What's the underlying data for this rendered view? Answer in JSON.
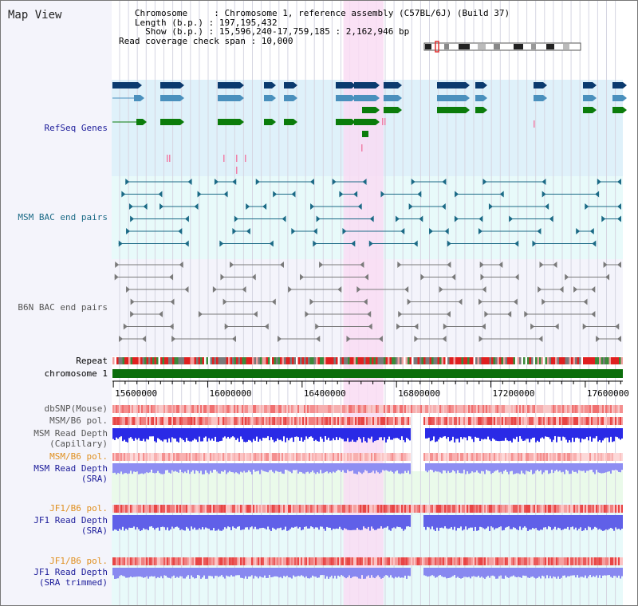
{
  "app": {
    "title": "Map View"
  },
  "header": {
    "lines": [
      "   Chromosome     : Chromosome 1, reference assembly (C57BL/6J) (Build 37)",
      "   Length (b.p.) : 197,195,432",
      "     Show (b.p.) : 15,596,240-17,759,185 : 2,162,946 bp",
      "Read coverage check span : 10,000"
    ]
  },
  "tracks": {
    "refseq_label": "RefSeq Genes",
    "msm_bac_label": "MSM BAC end pairs",
    "b6n_bac_label": "B6N BAC end pairs",
    "repeat_label": "Repeat",
    "chromosome_label": "chromosome 1",
    "dbsnp_label": "dbSNP(Mouse)",
    "msm_pol_label": "MSM/B6 pol.",
    "msm_depth_cap_label": "MSM Read Depth",
    "msm_depth_cap_sub": "(Capillary)",
    "msm_pol_sra_label": "MSM/B6 pol.",
    "msm_depth_sra_label": "MSM Read Depth",
    "msm_depth_sra_sub": "(SRA)",
    "jf1_pol_label": "JF1/B6 pol.",
    "jf1_depth_sra_label": "JF1 Read Depth",
    "jf1_depth_sra_sub": "(SRA)",
    "jf1_pol2_label": "JF1/B6 pol.",
    "jf1_depth_trim_label": "JF1 Read Depth",
    "jf1_depth_trim_sub": "(SRA trimmed)"
  },
  "axis": {
    "ticks": [
      "15600000",
      "16000000",
      "16400000",
      "16800000",
      "17200000",
      "17600000"
    ],
    "tick_values": [
      15600000,
      16000000,
      16400000,
      16800000,
      17200000,
      17600000
    ],
    "start": 15596240,
    "end": 17759185
  },
  "highlight": {
    "start": 16575000,
    "end": 16745000
  },
  "colors": {
    "refseq_bg": "#dff1fa",
    "msm_bac_bg": "#e8fafa",
    "b6n_bac_bg": "#f4f4fb",
    "highlight": "#f9dcf3",
    "refseq_navy": "#0b3a6e",
    "refseq_steel": "#4a90bd",
    "refseq_green": "#0b7c0b",
    "bac_teal": "#1b6a86",
    "b6n_gray": "#7a7a7a",
    "label_blue": "#1c1c9a",
    "label_teal": "#1b6a86",
    "label_gray": "#555555",
    "label_orange": "#e09020",
    "chrom_green": "#0b6e0b"
  }
}
